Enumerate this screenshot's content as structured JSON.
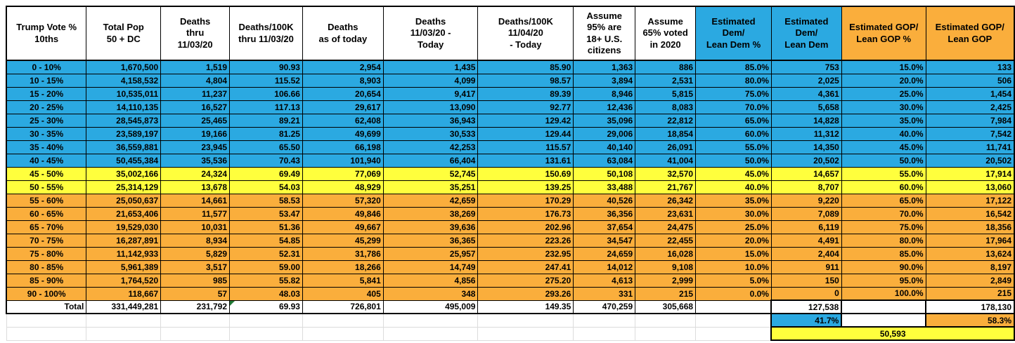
{
  "sheet": {
    "colors": {
      "blue": "#2BA9E1",
      "yellow": "#FFFF3D",
      "orange": "#FAAE3C"
    },
    "columns": [
      {
        "label": "Trump Vote %\n10ths",
        "bg": "white"
      },
      {
        "label": "Total Pop\n50 + DC",
        "bg": "white"
      },
      {
        "label": "Deaths\nthru\n11/03/20",
        "bg": "white"
      },
      {
        "label": "Deaths/100K\nthru 11/03/20",
        "bg": "white"
      },
      {
        "label": "Deaths\nas of today",
        "bg": "white"
      },
      {
        "label": "Deaths\n11/03/20 -\nToday",
        "bg": "white"
      },
      {
        "label": "Deaths/100K\n11/04/20\n- Today",
        "bg": "white"
      },
      {
        "label": "Assume\n95% are\n18+ U.S.\ncitizens",
        "bg": "white"
      },
      {
        "label": "Assume\n65% voted\nin 2020",
        "bg": "white"
      },
      {
        "label": "Estimated\nDem/\nLean Dem %",
        "bg": "blue"
      },
      {
        "label": "Estimated\nDem/\nLean Dem",
        "bg": "blue"
      },
      {
        "label": "Estimated GOP/\nLean GOP %",
        "bg": "orange"
      },
      {
        "label": "Estimated GOP/\nLean GOP",
        "bg": "orange"
      }
    ],
    "rows": [
      {
        "label": "0 - 10%",
        "band": "blue",
        "values": [
          "1,670,500",
          "1,519",
          "90.93",
          "2,954",
          "1,435",
          "85.90",
          "1,363",
          "886",
          "85.0%",
          "753",
          "15.0%",
          "133"
        ]
      },
      {
        "label": "10 - 15%",
        "band": "blue",
        "values": [
          "4,158,532",
          "4,804",
          "115.52",
          "8,903",
          "4,099",
          "98.57",
          "3,894",
          "2,531",
          "80.0%",
          "2,025",
          "20.0%",
          "506"
        ]
      },
      {
        "label": "15 - 20%",
        "band": "blue",
        "values": [
          "10,535,011",
          "11,237",
          "106.66",
          "20,654",
          "9,417",
          "89.39",
          "8,946",
          "5,815",
          "75.0%",
          "4,361",
          "25.0%",
          "1,454"
        ]
      },
      {
        "label": "20 - 25%",
        "band": "blue",
        "values": [
          "14,110,135",
          "16,527",
          "117.13",
          "29,617",
          "13,090",
          "92.77",
          "12,436",
          "8,083",
          "70.0%",
          "5,658",
          "30.0%",
          "2,425"
        ]
      },
      {
        "label": "25 - 30%",
        "band": "blue",
        "values": [
          "28,545,873",
          "25,465",
          "89.21",
          "62,408",
          "36,943",
          "129.42",
          "35,096",
          "22,812",
          "65.0%",
          "14,828",
          "35.0%",
          "7,984"
        ]
      },
      {
        "label": "30 - 35%",
        "band": "blue",
        "values": [
          "23,589,197",
          "19,166",
          "81.25",
          "49,699",
          "30,533",
          "129.44",
          "29,006",
          "18,854",
          "60.0%",
          "11,312",
          "40.0%",
          "7,542"
        ]
      },
      {
        "label": "35 - 40%",
        "band": "blue",
        "values": [
          "36,559,881",
          "23,945",
          "65.50",
          "66,198",
          "42,253",
          "115.57",
          "40,140",
          "26,091",
          "55.0%",
          "14,350",
          "45.0%",
          "11,741"
        ]
      },
      {
        "label": "40 - 45%",
        "band": "blue",
        "values": [
          "50,455,384",
          "35,536",
          "70.43",
          "101,940",
          "66,404",
          "131.61",
          "63,084",
          "41,004",
          "50.0%",
          "20,502",
          "50.0%",
          "20,502"
        ]
      },
      {
        "label": "45 - 50%",
        "band": "yellow",
        "values": [
          "35,002,166",
          "24,324",
          "69.49",
          "77,069",
          "52,745",
          "150.69",
          "50,108",
          "32,570",
          "45.0%",
          "14,657",
          "55.0%",
          "17,914"
        ]
      },
      {
        "label": "50 - 55%",
        "band": "yellow",
        "values": [
          "25,314,129",
          "13,678",
          "54.03",
          "48,929",
          "35,251",
          "139.25",
          "33,488",
          "21,767",
          "40.0%",
          "8,707",
          "60.0%",
          "13,060"
        ]
      },
      {
        "label": "55 - 60%",
        "band": "orange",
        "values": [
          "25,050,637",
          "14,661",
          "58.53",
          "57,320",
          "42,659",
          "170.29",
          "40,526",
          "26,342",
          "35.0%",
          "9,220",
          "65.0%",
          "17,122"
        ]
      },
      {
        "label": "60 - 65%",
        "band": "orange",
        "values": [
          "21,653,406",
          "11,577",
          "53.47",
          "49,846",
          "38,269",
          "176.73",
          "36,356",
          "23,631",
          "30.0%",
          "7,089",
          "70.0%",
          "16,542"
        ]
      },
      {
        "label": "65 - 70%",
        "band": "orange",
        "values": [
          "19,529,030",
          "10,031",
          "51.36",
          "49,667",
          "39,636",
          "202.96",
          "37,654",
          "24,475",
          "25.0%",
          "6,119",
          "75.0%",
          "18,356"
        ]
      },
      {
        "label": "70 - 75%",
        "band": "orange",
        "values": [
          "16,287,891",
          "8,934",
          "54.85",
          "45,299",
          "36,365",
          "223.26",
          "34,547",
          "22,455",
          "20.0%",
          "4,491",
          "80.0%",
          "17,964"
        ]
      },
      {
        "label": "75 - 80%",
        "band": "orange",
        "values": [
          "11,142,933",
          "5,829",
          "52.31",
          "31,786",
          "25,957",
          "232.95",
          "24,659",
          "16,028",
          "15.0%",
          "2,404",
          "85.0%",
          "13,624"
        ]
      },
      {
        "label": "80 - 85%",
        "band": "orange",
        "values": [
          "5,961,389",
          "3,517",
          "59.00",
          "18,266",
          "14,749",
          "247.41",
          "14,012",
          "9,108",
          "10.0%",
          "911",
          "90.0%",
          "8,197"
        ]
      },
      {
        "label": "85 - 90%",
        "band": "orange",
        "values": [
          "1,764,520",
          "985",
          "55.82",
          "5,841",
          "4,856",
          "275.20",
          "4,613",
          "2,999",
          "5.0%",
          "150",
          "95.0%",
          "2,849"
        ]
      },
      {
        "label": "90 - 100%",
        "band": "orange",
        "values": [
          "118,667",
          "57",
          "48.03",
          "405",
          "348",
          "293.26",
          "331",
          "215",
          "0.0%",
          "0",
          "100.0%",
          "215"
        ]
      }
    ],
    "total": {
      "label": "Total",
      "values": [
        "331,449,281",
        "231,792",
        "69.93",
        "726,801",
        "495,009",
        "149.35",
        "470,259",
        "305,668"
      ]
    },
    "summary": {
      "dem_count": "127,538",
      "dem_pct": "41.7%",
      "gop_count": "178,130",
      "gop_pct": "58.3%",
      "net": "50,593"
    }
  }
}
